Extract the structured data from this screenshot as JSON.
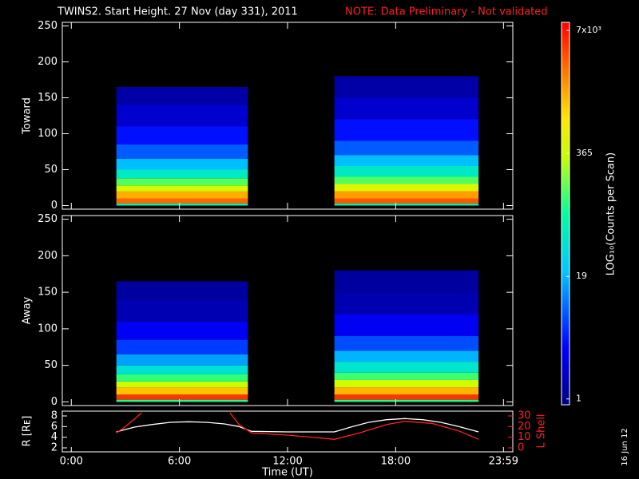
{
  "chart_data": {
    "type": "spectrogram",
    "title": "TWINS2. Start Height. 27 Nov (day 331), 2011",
    "note": "NOTE: Data Preliminary - Not validated",
    "xlabel": "Time (UT)",
    "xlim": [
      -0.5,
      24.5
    ],
    "xticks": [
      {
        "value": 0,
        "label": "0:00"
      },
      {
        "value": 6,
        "label": "6:00"
      },
      {
        "value": 12,
        "label": "12:00"
      },
      {
        "value": 18,
        "label": "18:00"
      },
      {
        "value": 23.983,
        "label": "23:59"
      }
    ],
    "ylim": [
      -5,
      255
    ],
    "yticks": [
      0,
      50,
      100,
      150,
      200,
      250
    ],
    "panels": [
      {
        "label": "Toward",
        "segments": [
          {
            "start": 2.5,
            "end": 9.8,
            "bins": [
              0,
              3,
              10,
              20,
              28,
              38,
              50,
              65,
              85,
              110,
              140,
              165
            ],
            "values": [
              60,
              3000,
              1500,
              400,
              150,
              50,
              20,
              8,
              4,
              2,
              1.3
            ]
          },
          {
            "start": 14.6,
            "end": 22.6,
            "bins": [
              0,
              3,
              10,
              20,
              30,
              40,
              55,
              70,
              90,
              120,
              150,
              180
            ],
            "values": [
              60,
              3500,
              1800,
              500,
              150,
              50,
              20,
              8,
              4,
              2,
              1.3
            ]
          }
        ]
      },
      {
        "label": "Away",
        "segments": [
          {
            "start": 2.5,
            "end": 9.8,
            "bins": [
              0,
              3,
              10,
              20,
              28,
              38,
              50,
              65,
              85,
              110,
              140,
              165
            ],
            "values": [
              100,
              5000,
              1200,
              350,
              120,
              40,
              15,
              6,
              3,
              1.5,
              1.2
            ]
          },
          {
            "start": 14.6,
            "end": 22.6,
            "bins": [
              0,
              3,
              10,
              20,
              30,
              40,
              55,
              70,
              90,
              120,
              150,
              180
            ],
            "values": [
              100,
              5000,
              1400,
              400,
              130,
              45,
              18,
              7,
              3,
              1.5,
              1.2
            ]
          }
        ]
      }
    ],
    "colorbar": {
      "label": "LOG₁₀(Counts per Scan)",
      "log": true,
      "zlim": [
        0.87,
        8500
      ],
      "ticks": [
        1,
        19,
        365,
        {
          "value": 7000,
          "label": "7x10³"
        }
      ]
    },
    "orbit": {
      "ylim": [
        1.25,
        8.9
      ],
      "yticks": [
        2,
        4,
        6,
        8
      ],
      "y2lim": [
        -3.75,
        34.5
      ],
      "y2ticks": [
        0,
        10,
        20,
        30
      ],
      "series": [
        {
          "name": "R [Rᴇ]",
          "color": "#ffffff",
          "x": [
            2.5,
            3.5,
            4.5,
            5.5,
            6.5,
            7.5,
            8.5,
            9.3,
            10,
            12,
            14.6,
            15.5,
            16.5,
            17.5,
            18.5,
            19.5,
            20.5,
            21.5,
            22.6
          ],
          "values": [
            5,
            5.9,
            6.4,
            6.8,
            6.9,
            6.8,
            6.5,
            6.0,
            5.1,
            5.0,
            5.0,
            5.9,
            6.8,
            7.3,
            7.5,
            7.3,
            6.8,
            6.0,
            5.0
          ]
        },
        {
          "name": "L Shell",
          "color": "#ff2020",
          "axis": "y2",
          "x": [
            2.5,
            3.0,
            3.5,
            3.9,
            6,
            8.8,
            9.3,
            10,
            12,
            14.6,
            16,
            17.5,
            18.5,
            20,
            21.5,
            22.6
          ],
          "values": [
            14,
            20,
            27,
            33,
            null,
            33,
            22,
            14,
            12,
            8,
            14,
            22,
            25,
            23,
            16,
            8
          ]
        }
      ]
    },
    "date": "16 Jun 12"
  }
}
